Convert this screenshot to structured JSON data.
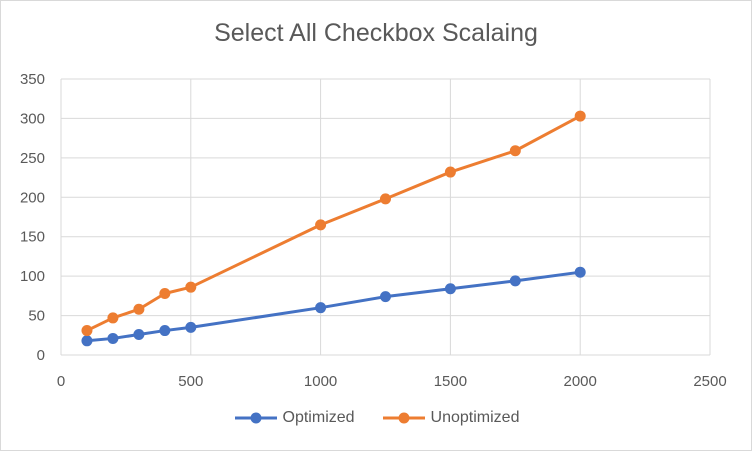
{
  "chart_data": {
    "type": "line",
    "title": "Select All Checkbox Scalaing",
    "xlabel": "",
    "ylabel": "",
    "xlim": [
      0,
      2500
    ],
    "ylim": [
      0,
      350
    ],
    "x_ticks": [
      0,
      500,
      1000,
      1500,
      2000,
      2500
    ],
    "y_ticks": [
      0,
      50,
      100,
      150,
      200,
      250,
      300,
      350
    ],
    "grid": true,
    "legend_position": "bottom",
    "series": [
      {
        "name": "Optimized",
        "color": "#4472C4",
        "points": [
          [
            100,
            18
          ],
          [
            200,
            21
          ],
          [
            300,
            26
          ],
          [
            400,
            31
          ],
          [
            500,
            35
          ],
          [
            1000,
            60
          ],
          [
            1250,
            74
          ],
          [
            1500,
            84
          ],
          [
            1750,
            94
          ],
          [
            2000,
            105
          ]
        ]
      },
      {
        "name": "Unoptimized",
        "color": "#ED7D31",
        "points": [
          [
            100,
            31
          ],
          [
            200,
            47
          ],
          [
            300,
            58
          ],
          [
            400,
            78
          ],
          [
            500,
            86
          ],
          [
            1000,
            165
          ],
          [
            1250,
            198
          ],
          [
            1500,
            232
          ],
          [
            1750,
            259
          ],
          [
            2000,
            303
          ]
        ]
      }
    ]
  }
}
